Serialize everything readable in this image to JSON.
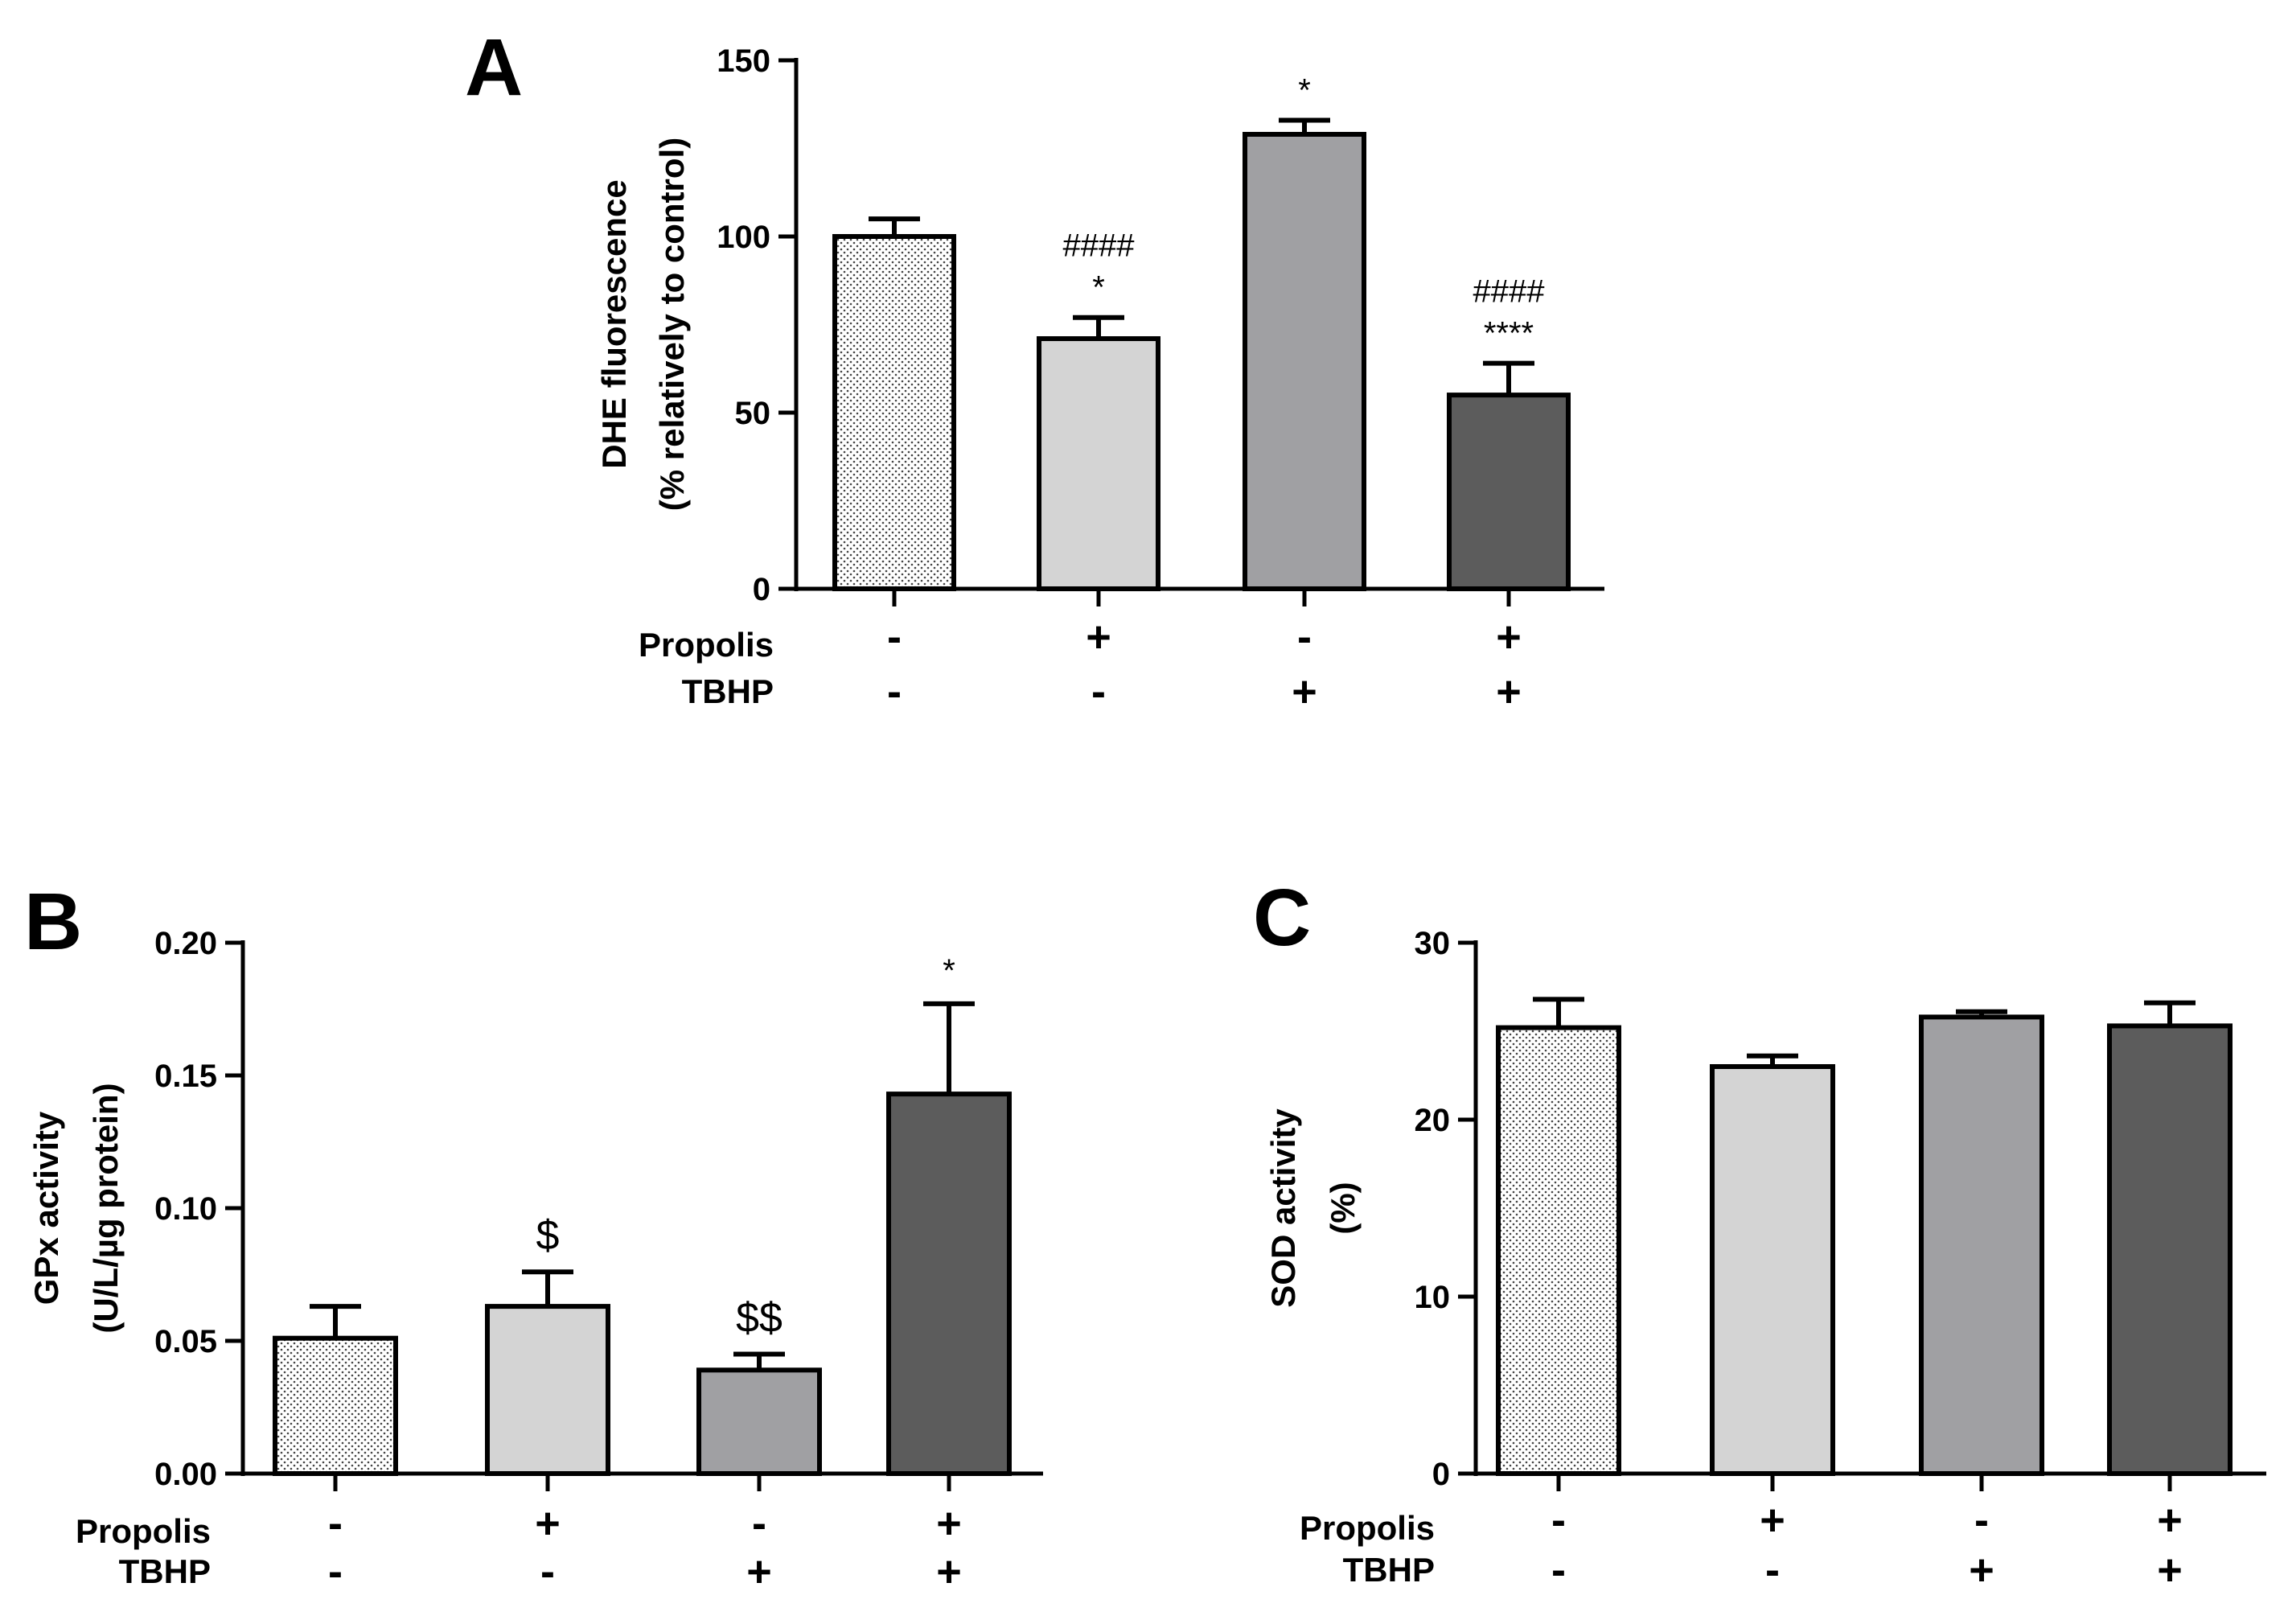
{
  "chart_data": [
    {
      "panel": "A",
      "type": "bar",
      "ylabel_lines": [
        "DHE fluorescence",
        "(% relatively to control)"
      ],
      "ylim": [
        0,
        150
      ],
      "yticks": [
        "0",
        "50",
        "100",
        "150"
      ],
      "ytick_values": [
        0,
        50,
        100,
        150
      ],
      "row_labels": [
        "Propolis",
        "TBHP"
      ],
      "conditions": [
        {
          "propolis": "-",
          "tbhp": "-",
          "value": 100,
          "error": 5,
          "fill": "dotted",
          "annotations": []
        },
        {
          "propolis": "+",
          "tbhp": "-",
          "value": 71,
          "error": 6,
          "fill": "#d4d4d4",
          "annotations": [
            "####",
            "*"
          ]
        },
        {
          "propolis": "-",
          "tbhp": "+",
          "value": 129,
          "error": 4,
          "fill": "#a0a0a3",
          "annotations": [
            "*"
          ]
        },
        {
          "propolis": "+",
          "tbhp": "+",
          "value": 55,
          "error": 9,
          "fill": "#5c5c5c",
          "annotations": [
            "####",
            "****"
          ]
        }
      ]
    },
    {
      "panel": "B",
      "type": "bar",
      "ylabel_lines": [
        "GPx activity",
        "(U/L/µg protein)"
      ],
      "ylim": [
        0,
        0.2
      ],
      "yticks": [
        "0.00",
        "0.05",
        "0.10",
        "0.15",
        "0.20"
      ],
      "ytick_values": [
        0,
        0.05,
        0.1,
        0.15,
        0.2
      ],
      "row_labels": [
        "Propolis",
        "TBHP"
      ],
      "conditions": [
        {
          "propolis": "-",
          "tbhp": "-",
          "value": 0.051,
          "error": 0.012,
          "fill": "dotted",
          "annotations": []
        },
        {
          "propolis": "+",
          "tbhp": "-",
          "value": 0.063,
          "error": 0.013,
          "fill": "#d4d4d4",
          "annotations": [
            "$"
          ]
        },
        {
          "propolis": "-",
          "tbhp": "+",
          "value": 0.039,
          "error": 0.006,
          "fill": "#a0a0a3",
          "annotations": [
            "$$"
          ]
        },
        {
          "propolis": "+",
          "tbhp": "+",
          "value": 0.143,
          "error": 0.034,
          "fill": "#5c5c5c",
          "annotations": [
            "*"
          ]
        }
      ]
    },
    {
      "panel": "C",
      "type": "bar",
      "ylabel_lines": [
        "SOD activity",
        "(%)"
      ],
      "ylim": [
        0,
        30
      ],
      "yticks": [
        "0",
        "10",
        "20",
        "30"
      ],
      "ytick_values": [
        0,
        10,
        20,
        30
      ],
      "row_labels": [
        "Propolis",
        "TBHP"
      ],
      "conditions": [
        {
          "propolis": "-",
          "tbhp": "-",
          "value": 25.2,
          "error": 1.6,
          "fill": "dotted",
          "annotations": []
        },
        {
          "propolis": "+",
          "tbhp": "-",
          "value": 23.0,
          "error": 0.6,
          "fill": "#d4d4d4",
          "annotations": []
        },
        {
          "propolis": "-",
          "tbhp": "+",
          "value": 25.8,
          "error": 0.3,
          "fill": "#a0a0a3",
          "annotations": []
        },
        {
          "propolis": "+",
          "tbhp": "+",
          "value": 25.3,
          "error": 1.3,
          "fill": "#5c5c5c",
          "annotations": []
        }
      ]
    }
  ]
}
